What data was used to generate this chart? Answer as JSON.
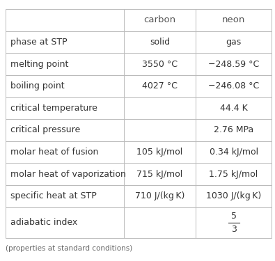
{
  "headers": [
    "",
    "carbon",
    "neon"
  ],
  "rows": [
    [
      "phase at STP",
      "solid",
      "gas"
    ],
    [
      "melting point",
      "3550 °C",
      "−248.59 °C"
    ],
    [
      "boiling point",
      "4027 °C",
      "−246.08 °C"
    ],
    [
      "critical temperature",
      "",
      "44.4 K"
    ],
    [
      "critical pressure",
      "",
      "2.76 MPa"
    ],
    [
      "molar heat of fusion",
      "105 kJ/mol",
      "0.34 kJ/mol"
    ],
    [
      "molar heat of vaporization",
      "715 kJ/mol",
      "1.75 kJ/mol"
    ],
    [
      "specific heat at STP",
      "710 J/(kg K)",
      "1030 J/(kg K)"
    ],
    [
      "adiabatic index",
      "",
      "FRACTION_5_3"
    ]
  ],
  "footer": "(properties at standard conditions)",
  "background_color": "#ffffff",
  "header_text_color": "#555555",
  "cell_text_color": "#333333",
  "grid_color": "#bbbbbb",
  "footer_color": "#666666",
  "font_size": 9.0,
  "header_font_size": 9.5,
  "footer_font_size": 7.5
}
